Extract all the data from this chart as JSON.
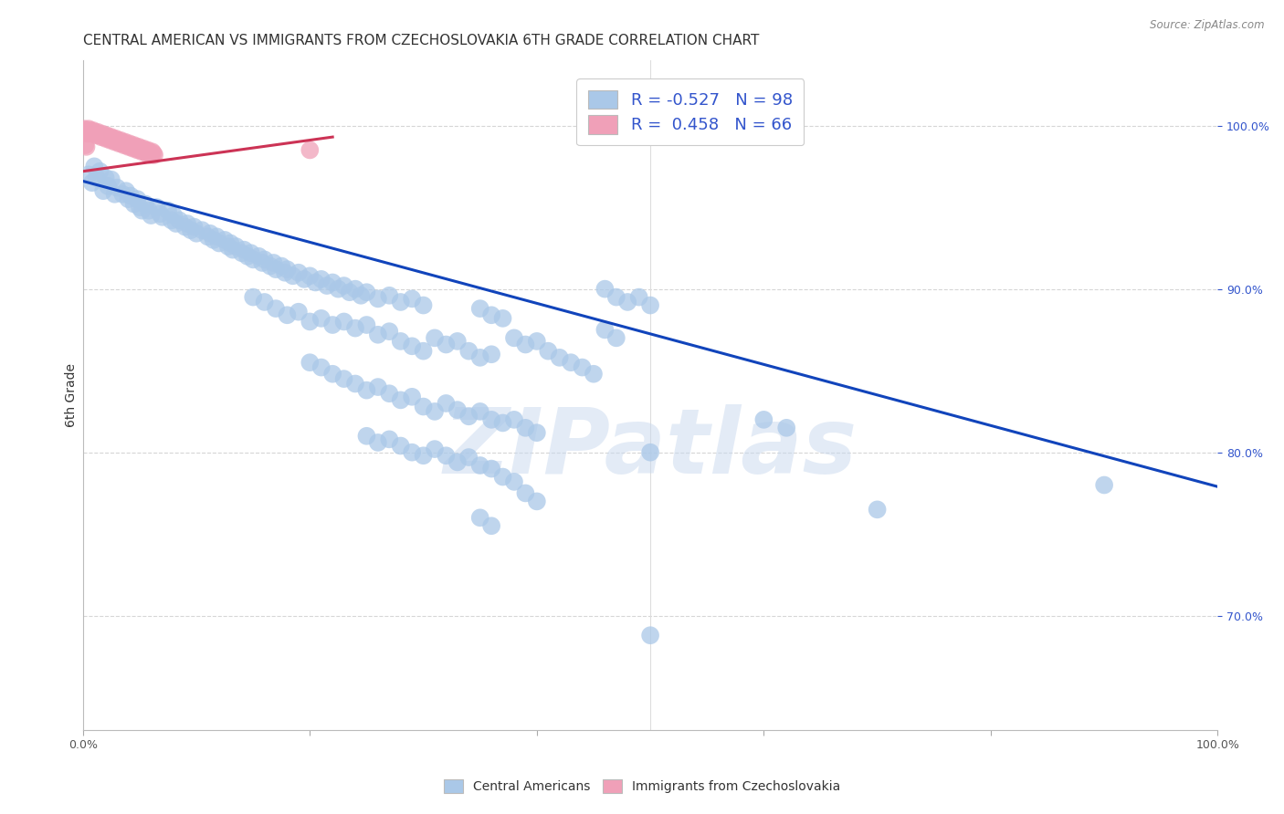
{
  "title": "CENTRAL AMERICAN VS IMMIGRANTS FROM CZECHOSLOVAKIA 6TH GRADE CORRELATION CHART",
  "source": "Source: ZipAtlas.com",
  "ylabel": "6th Grade",
  "xlim": [
    0.0,
    1.0
  ],
  "ylim": [
    0.63,
    1.04
  ],
  "yticks": [
    0.7,
    0.8,
    0.9,
    1.0
  ],
  "ytick_labels": [
    "70.0%",
    "80.0%",
    "90.0%",
    "100.0%"
  ],
  "xtick_labels": [
    "0.0%",
    "",
    "",
    "",
    "",
    "100.0%"
  ],
  "blue_color": "#aac8e8",
  "pink_color": "#f0a0b8",
  "line_blue_color": "#1144bb",
  "line_pink_color": "#cc3355",
  "blue_scatter": [
    [
      0.005,
      0.97
    ],
    [
      0.008,
      0.965
    ],
    [
      0.01,
      0.975
    ],
    [
      0.012,
      0.968
    ],
    [
      0.015,
      0.972
    ],
    [
      0.018,
      0.96
    ],
    [
      0.02,
      0.968
    ],
    [
      0.022,
      0.963
    ],
    [
      0.025,
      0.967
    ],
    [
      0.028,
      0.958
    ],
    [
      0.03,
      0.962
    ],
    [
      0.035,
      0.958
    ],
    [
      0.038,
      0.96
    ],
    [
      0.04,
      0.955
    ],
    [
      0.042,
      0.957
    ],
    [
      0.045,
      0.952
    ],
    [
      0.048,
      0.955
    ],
    [
      0.05,
      0.95
    ],
    [
      0.052,
      0.948
    ],
    [
      0.055,
      0.952
    ],
    [
      0.058,
      0.948
    ],
    [
      0.06,
      0.945
    ],
    [
      0.065,
      0.95
    ],
    [
      0.068,
      0.946
    ],
    [
      0.07,
      0.944
    ],
    [
      0.075,
      0.948
    ],
    [
      0.078,
      0.942
    ],
    [
      0.08,
      0.945
    ],
    [
      0.082,
      0.94
    ],
    [
      0.085,
      0.942
    ],
    [
      0.09,
      0.938
    ],
    [
      0.092,
      0.94
    ],
    [
      0.095,
      0.936
    ],
    [
      0.098,
      0.938
    ],
    [
      0.1,
      0.934
    ],
    [
      0.105,
      0.936
    ],
    [
      0.11,
      0.932
    ],
    [
      0.112,
      0.934
    ],
    [
      0.115,
      0.93
    ],
    [
      0.118,
      0.932
    ],
    [
      0.12,
      0.928
    ],
    [
      0.125,
      0.93
    ],
    [
      0.128,
      0.926
    ],
    [
      0.13,
      0.928
    ],
    [
      0.132,
      0.924
    ],
    [
      0.135,
      0.926
    ],
    [
      0.14,
      0.922
    ],
    [
      0.142,
      0.924
    ],
    [
      0.145,
      0.92
    ],
    [
      0.148,
      0.922
    ],
    [
      0.15,
      0.918
    ],
    [
      0.155,
      0.92
    ],
    [
      0.158,
      0.916
    ],
    [
      0.16,
      0.918
    ],
    [
      0.165,
      0.914
    ],
    [
      0.168,
      0.916
    ],
    [
      0.17,
      0.912
    ],
    [
      0.175,
      0.914
    ],
    [
      0.178,
      0.91
    ],
    [
      0.18,
      0.912
    ],
    [
      0.185,
      0.908
    ],
    [
      0.19,
      0.91
    ],
    [
      0.195,
      0.906
    ],
    [
      0.2,
      0.908
    ],
    [
      0.205,
      0.904
    ],
    [
      0.21,
      0.906
    ],
    [
      0.215,
      0.902
    ],
    [
      0.22,
      0.904
    ],
    [
      0.225,
      0.9
    ],
    [
      0.23,
      0.902
    ],
    [
      0.235,
      0.898
    ],
    [
      0.24,
      0.9
    ],
    [
      0.245,
      0.896
    ],
    [
      0.25,
      0.898
    ],
    [
      0.26,
      0.894
    ],
    [
      0.27,
      0.896
    ],
    [
      0.28,
      0.892
    ],
    [
      0.29,
      0.894
    ],
    [
      0.3,
      0.89
    ],
    [
      0.15,
      0.895
    ],
    [
      0.16,
      0.892
    ],
    [
      0.17,
      0.888
    ],
    [
      0.18,
      0.884
    ],
    [
      0.19,
      0.886
    ],
    [
      0.2,
      0.88
    ],
    [
      0.21,
      0.882
    ],
    [
      0.22,
      0.878
    ],
    [
      0.23,
      0.88
    ],
    [
      0.24,
      0.876
    ],
    [
      0.25,
      0.878
    ],
    [
      0.26,
      0.872
    ],
    [
      0.27,
      0.874
    ],
    [
      0.35,
      0.888
    ],
    [
      0.36,
      0.884
    ],
    [
      0.37,
      0.882
    ],
    [
      0.28,
      0.868
    ],
    [
      0.29,
      0.865
    ],
    [
      0.3,
      0.862
    ],
    [
      0.31,
      0.87
    ],
    [
      0.32,
      0.866
    ],
    [
      0.33,
      0.868
    ],
    [
      0.34,
      0.862
    ],
    [
      0.35,
      0.858
    ],
    [
      0.36,
      0.86
    ],
    [
      0.38,
      0.87
    ],
    [
      0.39,
      0.866
    ],
    [
      0.4,
      0.868
    ],
    [
      0.41,
      0.862
    ],
    [
      0.42,
      0.858
    ],
    [
      0.43,
      0.855
    ],
    [
      0.44,
      0.852
    ],
    [
      0.45,
      0.848
    ],
    [
      0.2,
      0.855
    ],
    [
      0.21,
      0.852
    ],
    [
      0.22,
      0.848
    ],
    [
      0.23,
      0.845
    ],
    [
      0.24,
      0.842
    ],
    [
      0.25,
      0.838
    ],
    [
      0.26,
      0.84
    ],
    [
      0.27,
      0.836
    ],
    [
      0.28,
      0.832
    ],
    [
      0.29,
      0.834
    ],
    [
      0.3,
      0.828
    ],
    [
      0.31,
      0.825
    ],
    [
      0.32,
      0.83
    ],
    [
      0.33,
      0.826
    ],
    [
      0.34,
      0.822
    ],
    [
      0.35,
      0.825
    ],
    [
      0.36,
      0.82
    ],
    [
      0.37,
      0.818
    ],
    [
      0.38,
      0.82
    ],
    [
      0.39,
      0.815
    ],
    [
      0.4,
      0.812
    ],
    [
      0.25,
      0.81
    ],
    [
      0.26,
      0.806
    ],
    [
      0.27,
      0.808
    ],
    [
      0.28,
      0.804
    ],
    [
      0.29,
      0.8
    ],
    [
      0.3,
      0.798
    ],
    [
      0.31,
      0.802
    ],
    [
      0.32,
      0.798
    ],
    [
      0.33,
      0.794
    ],
    [
      0.34,
      0.797
    ],
    [
      0.35,
      0.792
    ],
    [
      0.46,
      0.9
    ],
    [
      0.47,
      0.895
    ],
    [
      0.48,
      0.892
    ],
    [
      0.49,
      0.895
    ],
    [
      0.5,
      0.89
    ],
    [
      0.46,
      0.875
    ],
    [
      0.47,
      0.87
    ],
    [
      0.5,
      0.8
    ],
    [
      0.36,
      0.79
    ],
    [
      0.37,
      0.785
    ],
    [
      0.38,
      0.782
    ],
    [
      0.39,
      0.775
    ],
    [
      0.4,
      0.77
    ],
    [
      0.35,
      0.76
    ],
    [
      0.36,
      0.755
    ],
    [
      0.6,
      0.82
    ],
    [
      0.62,
      0.815
    ],
    [
      0.7,
      0.765
    ],
    [
      0.5,
      0.688
    ],
    [
      0.9,
      0.78
    ]
  ],
  "pink_scatter": [
    [
      0.001,
      0.998
    ],
    [
      0.002,
      0.997
    ],
    [
      0.003,
      0.996
    ],
    [
      0.004,
      0.995
    ],
    [
      0.005,
      0.998
    ],
    [
      0.006,
      0.997
    ],
    [
      0.007,
      0.996
    ],
    [
      0.008,
      0.995
    ],
    [
      0.009,
      0.997
    ],
    [
      0.01,
      0.996
    ],
    [
      0.011,
      0.995
    ],
    [
      0.012,
      0.994
    ],
    [
      0.013,
      0.996
    ],
    [
      0.014,
      0.995
    ],
    [
      0.015,
      0.994
    ],
    [
      0.016,
      0.993
    ],
    [
      0.017,
      0.995
    ],
    [
      0.018,
      0.994
    ],
    [
      0.019,
      0.993
    ],
    [
      0.02,
      0.992
    ],
    [
      0.021,
      0.994
    ],
    [
      0.022,
      0.993
    ],
    [
      0.023,
      0.992
    ],
    [
      0.024,
      0.991
    ],
    [
      0.025,
      0.993
    ],
    [
      0.026,
      0.992
    ],
    [
      0.027,
      0.991
    ],
    [
      0.028,
      0.99
    ],
    [
      0.029,
      0.992
    ],
    [
      0.03,
      0.991
    ],
    [
      0.031,
      0.99
    ],
    [
      0.032,
      0.989
    ],
    [
      0.033,
      0.991
    ],
    [
      0.034,
      0.99
    ],
    [
      0.035,
      0.989
    ],
    [
      0.036,
      0.988
    ],
    [
      0.037,
      0.99
    ],
    [
      0.038,
      0.989
    ],
    [
      0.039,
      0.988
    ],
    [
      0.04,
      0.987
    ],
    [
      0.041,
      0.989
    ],
    [
      0.042,
      0.988
    ],
    [
      0.043,
      0.987
    ],
    [
      0.044,
      0.986
    ],
    [
      0.045,
      0.988
    ],
    [
      0.046,
      0.987
    ],
    [
      0.047,
      0.986
    ],
    [
      0.048,
      0.985
    ],
    [
      0.049,
      0.987
    ],
    [
      0.05,
      0.986
    ],
    [
      0.051,
      0.985
    ],
    [
      0.052,
      0.984
    ],
    [
      0.053,
      0.986
    ],
    [
      0.054,
      0.985
    ],
    [
      0.055,
      0.984
    ],
    [
      0.056,
      0.983
    ],
    [
      0.057,
      0.985
    ],
    [
      0.058,
      0.984
    ],
    [
      0.059,
      0.983
    ],
    [
      0.06,
      0.982
    ],
    [
      0.061,
      0.984
    ],
    [
      0.062,
      0.983
    ],
    [
      0.063,
      0.982
    ],
    [
      0.2,
      0.985
    ],
    [
      0.002,
      0.988
    ],
    [
      0.003,
      0.987
    ]
  ],
  "blue_line_x": [
    0.0,
    1.0
  ],
  "blue_line_y": [
    0.966,
    0.779
  ],
  "pink_line_x": [
    0.0,
    0.22
  ],
  "pink_line_y": [
    0.972,
    0.993
  ],
  "watermark": "ZIPatlas",
  "background_color": "#ffffff",
  "grid_color": "#cccccc"
}
